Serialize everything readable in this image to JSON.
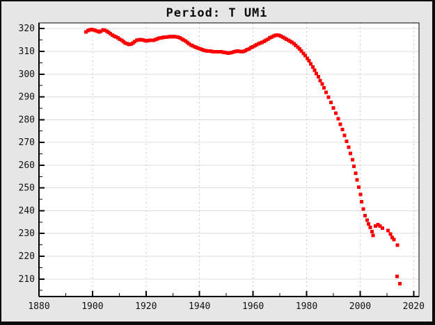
{
  "frame": {
    "background": "#e6e6e6",
    "border_color": "#0d0d0d",
    "plot_background": "#ffffff"
  },
  "chart_data": {
    "type": "scatter",
    "title": "Period: T UMi",
    "xlabel": "",
    "ylabel": "",
    "marker": {
      "shape": "square",
      "color": "#ff0000",
      "size": 5
    },
    "xlim": [
      1880,
      2022
    ],
    "ylim": [
      202.3,
      322.5
    ],
    "x_major_ticks": [
      1880,
      1900,
      1920,
      1940,
      1960,
      1980,
      2000,
      2020
    ],
    "x_minor_ticks": [
      1890,
      1910,
      1930,
      1950,
      1970,
      1990,
      2010
    ],
    "x_tick_labels": [
      "1880",
      "1900",
      "1920",
      "1940",
      "1960",
      "1980",
      "2000",
      "2020"
    ],
    "y_major_ticks": [
      210,
      220,
      230,
      240,
      250,
      260,
      270,
      280,
      290,
      300,
      310,
      320
    ],
    "y_minor_ticks": [
      205,
      215,
      225,
      235,
      245,
      255,
      265,
      275,
      285,
      295,
      305,
      315
    ],
    "y_tick_labels": [
      "210",
      "220",
      "230",
      "240",
      "250",
      "260",
      "270",
      "280",
      "290",
      "300",
      "310",
      "320"
    ],
    "grid": {
      "horizontal_style": "solid",
      "horizontal_color": "#dcdcdc",
      "vertical_style": "dashed",
      "vertical_color": "#c9c9c9"
    },
    "axis_color": "#000000",
    "legend": "none",
    "series": [
      {
        "name": "period",
        "points": [
          [
            1897.6,
            318.6
          ],
          [
            1898.3,
            319.1
          ],
          [
            1899,
            319.4
          ],
          [
            1899.7,
            319.6
          ],
          [
            1900.4,
            319.5
          ],
          [
            1901.1,
            319.2
          ],
          [
            1901.8,
            318.8
          ],
          [
            1902.5,
            318.6
          ],
          [
            1903.2,
            318.9
          ],
          [
            1903.9,
            319.4
          ],
          [
            1904.6,
            319.3
          ],
          [
            1905.3,
            318.9
          ],
          [
            1906,
            318.4
          ],
          [
            1906.7,
            317.7
          ],
          [
            1907.4,
            317.1
          ],
          [
            1908.1,
            316.7
          ],
          [
            1908.8,
            316.4
          ],
          [
            1909.5,
            315.9
          ],
          [
            1910.2,
            315.4
          ],
          [
            1910.9,
            314.9
          ],
          [
            1911.6,
            314.3
          ],
          [
            1912.3,
            313.7
          ],
          [
            1913,
            313.3
          ],
          [
            1913.7,
            313.1
          ],
          [
            1914.4,
            313.2
          ],
          [
            1915.1,
            313.7
          ],
          [
            1915.8,
            314.3
          ],
          [
            1916.5,
            314.8
          ],
          [
            1917.2,
            315.1
          ],
          [
            1917.9,
            315.2
          ],
          [
            1918.6,
            315
          ],
          [
            1919.3,
            314.8
          ],
          [
            1920,
            314.6
          ],
          [
            1920.7,
            314.7
          ],
          [
            1921.4,
            314.9
          ],
          [
            1922.1,
            314.8
          ],
          [
            1922.8,
            314.9
          ],
          [
            1923.5,
            315.2
          ],
          [
            1924.2,
            315.5
          ],
          [
            1924.9,
            315.8
          ],
          [
            1925.6,
            316
          ],
          [
            1926.3,
            316.1
          ],
          [
            1927,
            316.2
          ],
          [
            1927.7,
            316.3
          ],
          [
            1928.4,
            316.4
          ],
          [
            1929.1,
            316.5
          ],
          [
            1929.8,
            316.4
          ],
          [
            1930.5,
            316.5
          ],
          [
            1931.2,
            316.4
          ],
          [
            1931.9,
            316.2
          ],
          [
            1932.6,
            315.9
          ],
          [
            1933.3,
            315.5
          ],
          [
            1934,
            315
          ],
          [
            1934.7,
            314.5
          ],
          [
            1935.4,
            314
          ],
          [
            1936.1,
            313.4
          ],
          [
            1936.8,
            312.8
          ],
          [
            1937.5,
            312.4
          ],
          [
            1938.2,
            312
          ],
          [
            1938.9,
            311.7
          ],
          [
            1939.6,
            311.4
          ],
          [
            1940.3,
            311.1
          ],
          [
            1941,
            310.8
          ],
          [
            1941.7,
            310.5
          ],
          [
            1942.4,
            310.3
          ],
          [
            1943.1,
            310.2
          ],
          [
            1943.8,
            310.1
          ],
          [
            1944.5,
            310
          ],
          [
            1945.2,
            309.9
          ],
          [
            1945.9,
            309.9
          ],
          [
            1946.6,
            309.8
          ],
          [
            1947.3,
            309.8
          ],
          [
            1948,
            309.9
          ],
          [
            1948.7,
            309.7
          ],
          [
            1949.4,
            309.5
          ],
          [
            1950.1,
            309.4
          ],
          [
            1950.8,
            309.3
          ],
          [
            1951.5,
            309.4
          ],
          [
            1952.2,
            309.6
          ],
          [
            1952.9,
            309.8
          ],
          [
            1953.6,
            310
          ],
          [
            1954.3,
            310.1
          ],
          [
            1955,
            310
          ],
          [
            1955.7,
            309.9
          ],
          [
            1956.4,
            310
          ],
          [
            1957.1,
            310.3
          ],
          [
            1957.8,
            310.7
          ],
          [
            1958.5,
            311.1
          ],
          [
            1959.2,
            311.6
          ],
          [
            1959.9,
            312
          ],
          [
            1960.6,
            312.4
          ],
          [
            1961.3,
            312.9
          ],
          [
            1962,
            313.3
          ],
          [
            1962.7,
            313.7
          ],
          [
            1963.4,
            314
          ],
          [
            1964.1,
            314.4
          ],
          [
            1964.8,
            314.9
          ],
          [
            1965.5,
            315.4
          ],
          [
            1966.2,
            315.9
          ],
          [
            1966.9,
            316.3
          ],
          [
            1967.6,
            316.7
          ],
          [
            1968.3,
            317
          ],
          [
            1969,
            317.1
          ],
          [
            1969.7,
            317
          ],
          [
            1970.4,
            316.7
          ],
          [
            1971.1,
            316.3
          ],
          [
            1971.8,
            315.8
          ],
          [
            1972.5,
            315.3
          ],
          [
            1973.2,
            314.9
          ],
          [
            1973.9,
            314.4
          ],
          [
            1974.6,
            313.9
          ],
          [
            1975.3,
            313.3
          ],
          [
            1976,
            312.6
          ],
          [
            1976.7,
            311.8
          ],
          [
            1977.4,
            311
          ],
          [
            1978.1,
            310.1
          ],
          [
            1978.8,
            309.1
          ],
          [
            1979.5,
            308.1
          ],
          [
            1980.2,
            307
          ],
          [
            1980.9,
            305.8
          ],
          [
            1981.6,
            304.5
          ],
          [
            1982.3,
            303.2
          ],
          [
            1983,
            301.8
          ],
          [
            1983.7,
            300.3
          ],
          [
            1984.4,
            298.8
          ],
          [
            1985.1,
            297.2
          ],
          [
            1985.8,
            295.6
          ],
          [
            1986.5,
            293.9
          ],
          [
            1987.3,
            292
          ],
          [
            1988.2,
            289.8
          ],
          [
            1989.1,
            287.5
          ],
          [
            1990,
            285.2
          ],
          [
            1990.9,
            282.8
          ],
          [
            1991.8,
            280.4
          ],
          [
            1992.6,
            278
          ],
          [
            1993.4,
            275.6
          ],
          [
            1994.2,
            273.1
          ],
          [
            1995,
            270.5
          ],
          [
            1995.7,
            267.9
          ],
          [
            1996.4,
            265.2
          ],
          [
            1997.1,
            262.4
          ],
          [
            1997.7,
            259.5
          ],
          [
            1998.3,
            256.5
          ],
          [
            1998.9,
            253.5
          ],
          [
            1999.5,
            250.4
          ],
          [
            2000.1,
            247.2
          ],
          [
            2000.6,
            244
          ],
          [
            2001.2,
            240.8
          ],
          [
            2001.9,
            237.9
          ],
          [
            2002.6,
            235.8
          ],
          [
            2003.2,
            234.2
          ],
          [
            2003.8,
            232.6
          ],
          [
            2004.4,
            230.9
          ],
          [
            2004.9,
            229.2
          ],
          [
            2005.8,
            233.2
          ],
          [
            2006.6,
            233.8
          ],
          [
            2007.5,
            233.3
          ],
          [
            2008.3,
            232.3
          ],
          [
            2010.4,
            231.3
          ],
          [
            2011.3,
            229.8
          ],
          [
            2012,
            228.3
          ],
          [
            2012.7,
            227.3
          ],
          [
            2014,
            224.8
          ],
          [
            2013.8,
            211.2
          ],
          [
            2014.8,
            208
          ]
        ]
      }
    ]
  }
}
